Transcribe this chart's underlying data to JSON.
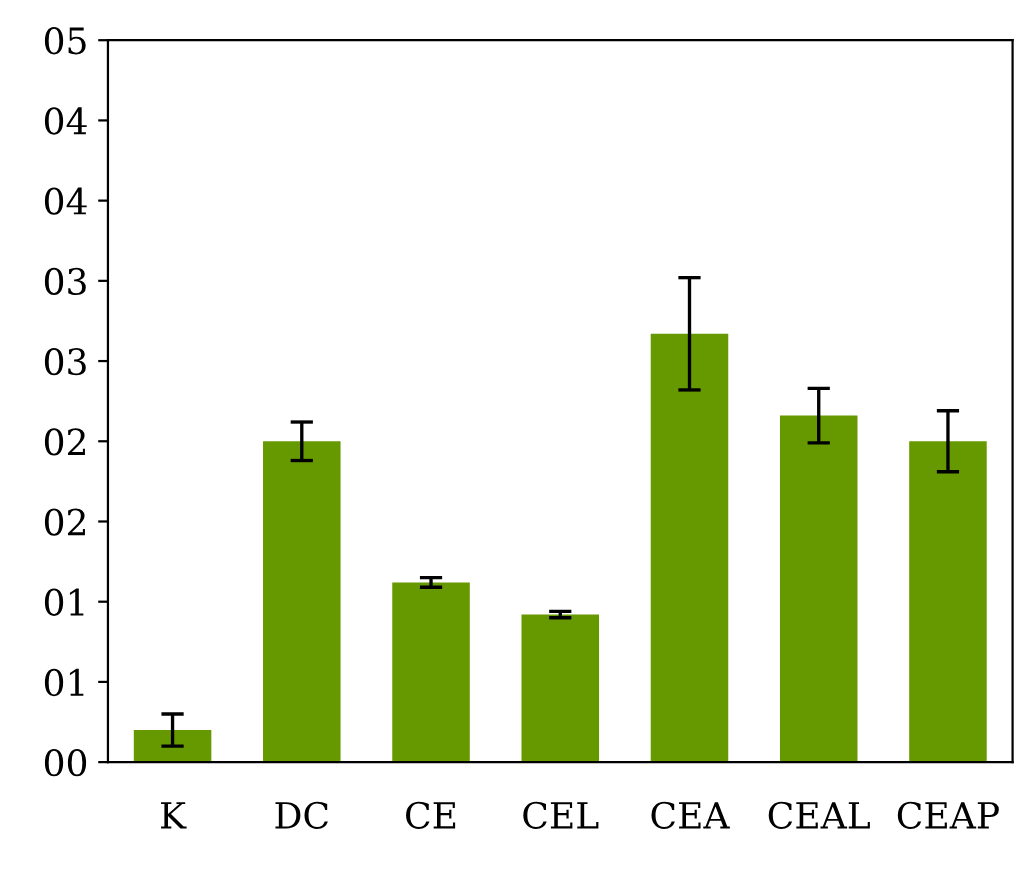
{
  "chart_data": {
    "type": "bar",
    "categories": [
      "K",
      "DC",
      "CE",
      "CEL",
      "CEA",
      "CEAL",
      "CEAP"
    ],
    "values": [
      0.2,
      2.0,
      1.12,
      0.92,
      2.67,
      2.16,
      2.0
    ],
    "errors": [
      0.1,
      0.12,
      0.03,
      0.02,
      0.35,
      0.17,
      0.19
    ],
    "color": "#669900",
    "ylim": [
      0,
      4.5
    ],
    "yticks": [
      {
        "value": 0,
        "label": "00"
      },
      {
        "value": 0.5,
        "label": "01"
      },
      {
        "value": 1.0,
        "label": "01"
      },
      {
        "value": 1.5,
        "label": "02"
      },
      {
        "value": 2.0,
        "label": "02"
      },
      {
        "value": 2.5,
        "label": "03"
      },
      {
        "value": 3.0,
        "label": "03"
      },
      {
        "value": 3.5,
        "label": "04"
      },
      {
        "value": 4.0,
        "label": "04"
      },
      {
        "value": 4.5,
        "label": "05"
      }
    ],
    "grid": false
  }
}
